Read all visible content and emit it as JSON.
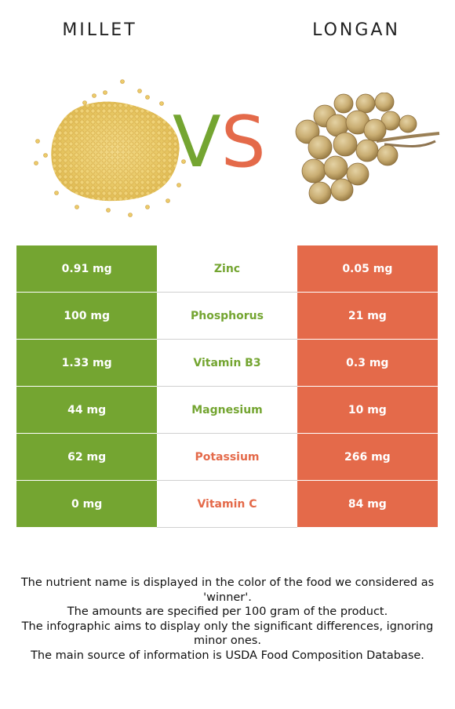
{
  "header": {
    "left_food": "MILLET",
    "right_food": "LONGAN",
    "vs_v": "V",
    "vs_s": "S"
  },
  "colors": {
    "left": "#74a531",
    "right": "#e46a4a"
  },
  "rows": [
    {
      "left": "0.91 mg",
      "nutrient": "Zinc",
      "right": "0.05 mg",
      "winner": "left"
    },
    {
      "left": "100 mg",
      "nutrient": "Phosphorus",
      "right": "21 mg",
      "winner": "left"
    },
    {
      "left": "1.33 mg",
      "nutrient": "Vitamin B3",
      "right": "0.3 mg",
      "winner": "left"
    },
    {
      "left": "44 mg",
      "nutrient": "Magnesium",
      "right": "10 mg",
      "winner": "left"
    },
    {
      "left": "62 mg",
      "nutrient": "Potassium",
      "right": "266 mg",
      "winner": "right"
    },
    {
      "left": "0 mg",
      "nutrient": "Vitamin C",
      "right": "84 mg",
      "winner": "right"
    }
  ],
  "footnotes": [
    "The nutrient name is displayed in the color of the food we considered as 'winner'.",
    "The amounts are specified per 100 gram of the product.",
    "The infographic aims to display only the significant differences, ignoring minor ones.",
    "The main source of information is USDA Food Composition Database."
  ],
  "icons": {
    "left_image": "millet-grains-pile",
    "right_image": "longan-fruit-cluster"
  }
}
